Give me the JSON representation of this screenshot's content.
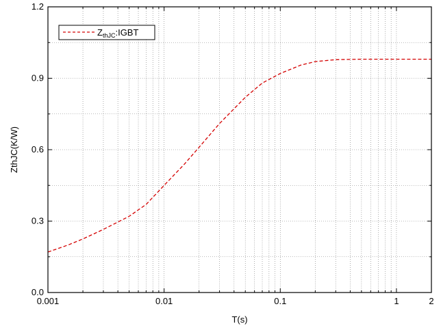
{
  "chart_data": {
    "type": "line",
    "xlabel": "T(s)",
    "ylabel": "ZthJC(K/W)",
    "xscale": "log",
    "xlim": [
      0.001,
      2
    ],
    "ylim": [
      0.0,
      1.2
    ],
    "x_ticks": [
      0.001,
      0.01,
      0.1,
      1,
      2
    ],
    "x_tick_labels": [
      "0.001",
      "0.01",
      "0.1",
      "1",
      "2"
    ],
    "y_ticks": [
      0.0,
      0.3,
      0.6,
      0.9,
      1.2
    ],
    "y_tick_labels": [
      "0.0",
      "0.3",
      "0.6",
      "0.9",
      "1.2"
    ],
    "grid": true,
    "legend_position": "top-left",
    "series": [
      {
        "name": "ZthJC:IGBT",
        "legend_main": "Z",
        "legend_sub": "thJC",
        "legend_suffix": ":IGBT",
        "color": "#d40000",
        "line_style": "dashed",
        "x": [
          0.001,
          0.0015,
          0.002,
          0.003,
          0.005,
          0.007,
          0.01,
          0.015,
          0.02,
          0.03,
          0.05,
          0.07,
          0.1,
          0.15,
          0.2,
          0.3,
          0.5,
          0.7,
          1,
          1.5,
          2
        ],
        "y": [
          0.17,
          0.2,
          0.225,
          0.265,
          0.32,
          0.37,
          0.45,
          0.54,
          0.61,
          0.71,
          0.82,
          0.88,
          0.92,
          0.955,
          0.97,
          0.978,
          0.98,
          0.98,
          0.98,
          0.98,
          0.98
        ]
      }
    ]
  }
}
